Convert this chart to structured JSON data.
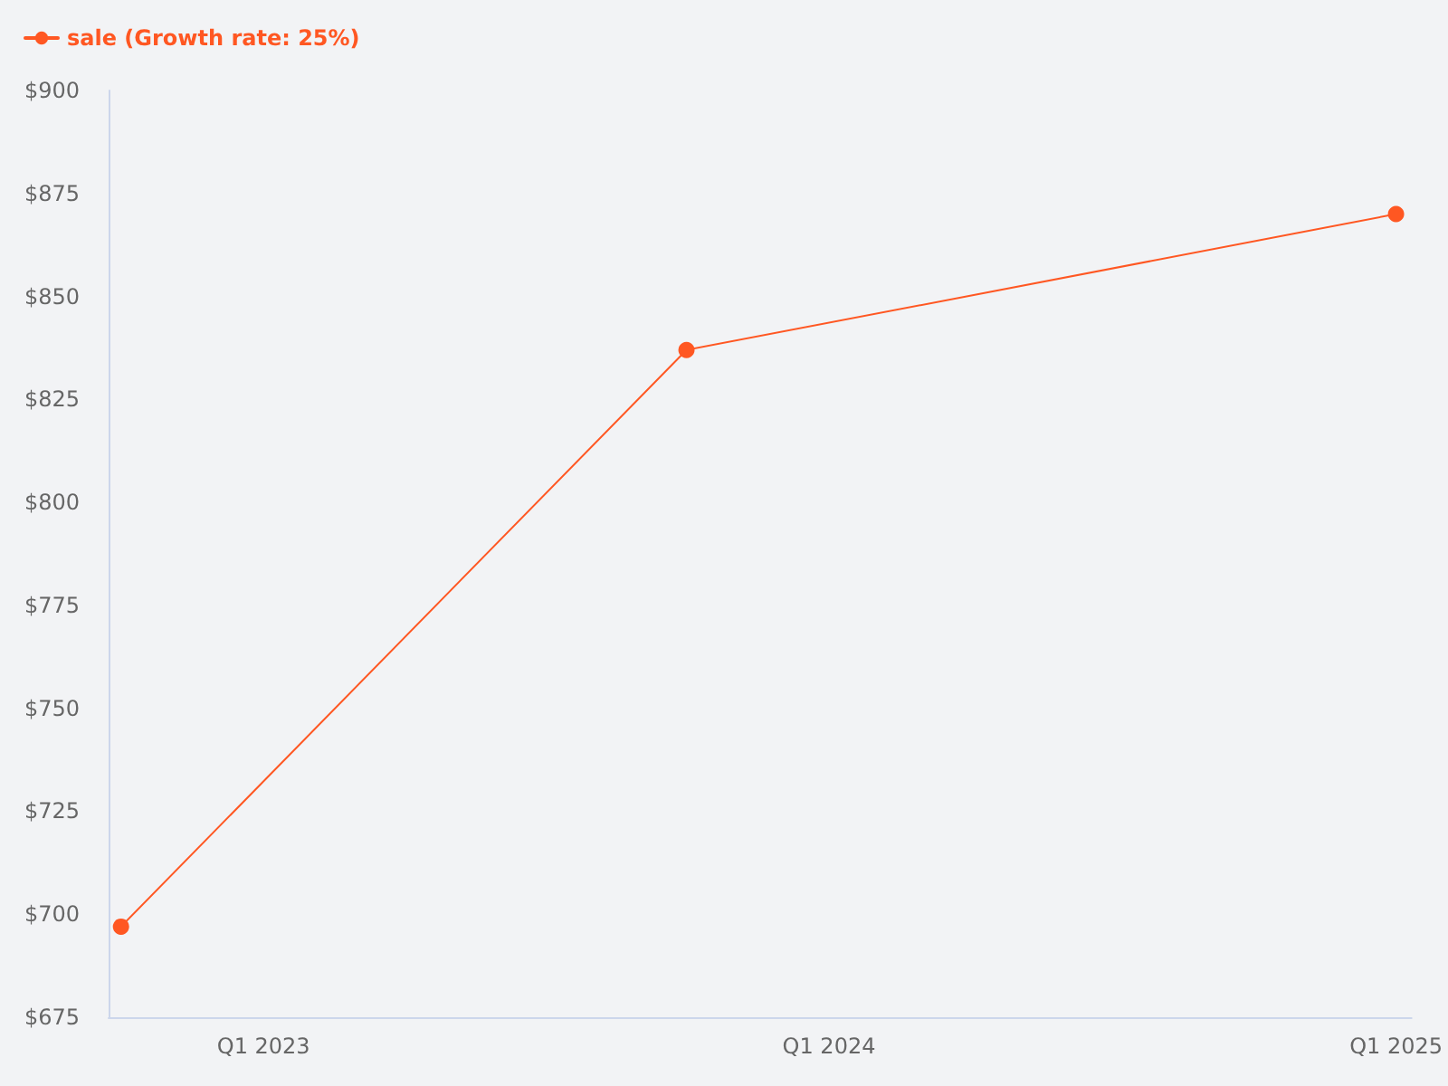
{
  "chart_data": {
    "type": "line",
    "x": [
      "2022-10-01",
      "2023-10-01",
      "2025-01-01"
    ],
    "series": [
      {
        "name": "sale (Growth rate: 25%)",
        "color": "#ff5722",
        "values": [
          697,
          837,
          870
        ]
      }
    ],
    "xlim": [
      "2022-09-23",
      "2025-01-11"
    ],
    "xticks": [
      {
        "value": "2023-01-01",
        "label": "Q1 2023"
      },
      {
        "value": "2024-01-01",
        "label": "Q1 2024"
      },
      {
        "value": "2025-01-01",
        "label": "Q1 2025"
      }
    ],
    "ylim": [
      675,
      900
    ],
    "yticks": [
      {
        "value": 675,
        "label": "$675"
      },
      {
        "value": 700,
        "label": "$700"
      },
      {
        "value": 725,
        "label": "$725"
      },
      {
        "value": 750,
        "label": "$750"
      },
      {
        "value": 775,
        "label": "$775"
      },
      {
        "value": 800,
        "label": "$800"
      },
      {
        "value": 825,
        "label": "$825"
      },
      {
        "value": 850,
        "label": "$850"
      },
      {
        "value": 875,
        "label": "$875"
      },
      {
        "value": 900,
        "label": "$900"
      }
    ],
    "grid": false,
    "legend": "top left",
    "marker": "circle",
    "line_style": "solid"
  }
}
